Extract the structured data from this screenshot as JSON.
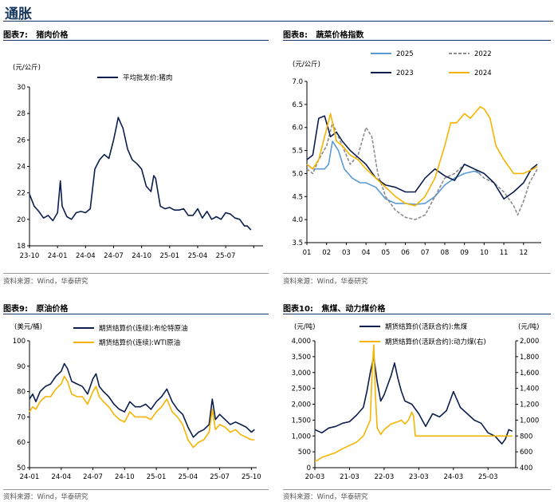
{
  "page_title": "通胀",
  "colors": {
    "navy": "#0b1e4d",
    "gold": "#f5b400",
    "lightblue": "#5b9bd5",
    "gray": "#8c8c8c",
    "title": "#17375e"
  },
  "charts": [
    {
      "figure_label": "图表7:",
      "figure_title": "猪肉价格",
      "source": "资料来源：Wind，华泰研究",
      "chart_data": {
        "type": "line",
        "title": "猪肉价格",
        "ylabel": "(元/公斤)",
        "ylim": [
          18,
          30
        ],
        "yticks": [
          18,
          20,
          22,
          24,
          26,
          28,
          30
        ],
        "xlim": [
          0,
          25
        ],
        "xtick_positions": [
          0,
          3,
          6,
          9,
          12,
          15,
          18,
          21,
          24
        ],
        "xticks": [
          "23-10",
          "24-01",
          "24-04",
          "24-07",
          "24-10",
          "25-01",
          "25-04",
          "25-07",
          ""
        ],
        "legend_position": "top-center",
        "series": [
          {
            "name": "平均批发价:猪肉",
            "color": "#0b1e4d",
            "x": [
              0,
              0.5,
              1,
              1.5,
              2,
              2.5,
              3,
              3.3,
              3.5,
              4,
              4.5,
              5,
              5.5,
              6,
              6.5,
              7,
              7.5,
              8,
              8.5,
              9,
              9.3,
              9.5,
              9.8,
              10,
              10.5,
              11,
              11.5,
              12,
              12.5,
              13,
              13.3,
              13.5,
              14,
              14.5,
              15,
              15.5,
              16,
              16.5,
              17,
              17.5,
              18,
              18.5,
              19,
              19.5,
              20,
              20.5,
              21,
              21.5,
              22,
              22.5,
              23,
              23.3,
              23.7
            ],
            "y": [
              21.9,
              21.0,
              20.6,
              20.1,
              20.3,
              19.9,
              20.5,
              22.9,
              21.0,
              20.2,
              20.0,
              20.5,
              20.6,
              20.5,
              20.8,
              23.8,
              24.5,
              24.9,
              24.6,
              26.0,
              27.0,
              27.7,
              27.2,
              26.9,
              25.3,
              24.5,
              24.2,
              23.8,
              22.5,
              22.1,
              23.3,
              23.1,
              21.0,
              20.8,
              20.9,
              20.7,
              20.7,
              20.8,
              20.3,
              20.3,
              20.8,
              20.1,
              20.6,
              20.0,
              20.2,
              20.0,
              20.5,
              20.4,
              20.1,
              20.0,
              19.5,
              19.5,
              19.2
            ]
          }
        ]
      }
    },
    {
      "figure_label": "图表8:",
      "figure_title": "蔬菜价格指数",
      "source": "资料来源：Wind，华泰研究",
      "chart_data": {
        "type": "line",
        "title": "蔬菜价格指数",
        "ylabel": "(元/公斤)",
        "ylim": [
          3.5,
          7.0
        ],
        "yticks": [
          3.5,
          4.0,
          4.5,
          5.0,
          5.5,
          6.0,
          6.5,
          7.0
        ],
        "xlim": [
          1,
          12.9
        ],
        "xtick_positions": [
          1,
          2,
          3,
          4,
          5,
          6,
          7,
          8,
          9,
          10,
          11,
          12
        ],
        "xticks": [
          "01",
          "02",
          "03",
          "04",
          "05",
          "06",
          "07",
          "08",
          "09",
          "10",
          "11",
          "12"
        ],
        "legend_position": "top",
        "series": [
          {
            "name": "2025",
            "color": "#5b9bd5",
            "style": "solid",
            "x": [
              1,
              1.3,
              1.6,
              1.9,
              2.1,
              2.3,
              2.6,
              2.9,
              3.3,
              3.7,
              4,
              4.5,
              5,
              5.5,
              6,
              6.5,
              7,
              7.5,
              8,
              8.5,
              9,
              9.5,
              9.8
            ],
            "y": [
              5.2,
              5.1,
              5.1,
              5.1,
              5.2,
              5.7,
              5.5,
              5.1,
              4.9,
              4.8,
              4.8,
              4.7,
              4.45,
              4.35,
              4.35,
              4.33,
              4.35,
              4.5,
              4.75,
              4.9,
              5.0,
              5.05,
              5.0
            ]
          },
          {
            "name": "2022",
            "color": "#8c8c8c",
            "style": "dashed",
            "x": [
              1,
              1.3,
              1.6,
              2,
              2.3,
              2.6,
              2.9,
              3.2,
              3.6,
              4,
              4.3,
              4.6,
              5,
              5.5,
              6,
              6.5,
              7,
              7.5,
              8,
              8.5,
              9,
              9.5,
              10,
              10.5,
              11,
              11.5,
              11.7,
              12,
              12.3,
              12.7
            ],
            "y": [
              5.1,
              5.0,
              5.3,
              5.6,
              6.1,
              5.8,
              5.5,
              5.2,
              5.4,
              6.0,
              5.8,
              5.0,
              4.5,
              4.2,
              4.05,
              4.0,
              4.1,
              4.5,
              4.9,
              5.0,
              5.2,
              5.1,
              4.9,
              4.8,
              4.6,
              4.3,
              4.1,
              4.4,
              4.8,
              5.1
            ]
          },
          {
            "name": "2023",
            "color": "#0b1e4d",
            "style": "solid",
            "x": [
              1,
              1.3,
              1.6,
              1.9,
              2.2,
              2.5,
              2.8,
              3.2,
              3.6,
              4,
              4.5,
              5,
              5.5,
              6,
              6.5,
              7,
              7.5,
              8,
              8.5,
              9,
              9.5,
              10,
              10.5,
              11,
              11.5,
              12,
              12.4,
              12.7
            ],
            "y": [
              5.3,
              5.4,
              6.2,
              6.25,
              5.8,
              5.9,
              5.7,
              5.5,
              5.35,
              5.2,
              4.9,
              4.75,
              4.7,
              4.6,
              4.6,
              4.9,
              5.1,
              4.95,
              4.85,
              5.2,
              5.1,
              5.0,
              4.8,
              4.45,
              4.6,
              4.8,
              5.1,
              5.2
            ]
          },
          {
            "name": "2024",
            "color": "#f5b400",
            "style": "solid",
            "x": [
              1,
              1.3,
              1.6,
              1.9,
              2.2,
              2.5,
              2.8,
              3.2,
              3.6,
              4,
              4.5,
              5,
              5.5,
              6,
              6.5,
              7,
              7.5,
              8,
              8.3,
              8.6,
              9,
              9.3,
              9.6,
              9.8,
              10,
              10.3,
              10.6,
              11,
              11.5,
              12,
              12.5,
              12.7
            ],
            "y": [
              5.2,
              5.1,
              5.3,
              5.8,
              6.3,
              5.7,
              5.6,
              5.4,
              5.3,
              5.1,
              4.9,
              4.7,
              4.5,
              4.35,
              4.3,
              4.5,
              4.9,
              5.6,
              6.1,
              6.1,
              6.3,
              6.2,
              6.35,
              6.45,
              6.4,
              6.2,
              5.6,
              5.3,
              5.0,
              5.0,
              5.1,
              5.15
            ]
          }
        ]
      }
    },
    {
      "figure_label": "图表9:",
      "figure_title": "原油价格",
      "source": "资料来源：Wind，华泰研究",
      "chart_data": {
        "type": "line",
        "title": "原油价格",
        "ylabel": "(美元/桶)",
        "ylim": [
          50,
          100
        ],
        "yticks": [
          50,
          60,
          70,
          80,
          90,
          100
        ],
        "xlim": [
          0,
          21.5
        ],
        "xtick_positions": [
          0,
          3,
          6,
          9,
          12,
          15,
          18,
          21
        ],
        "xticks": [
          "24-01",
          "24-04",
          "24-07",
          "24-10",
          "25-01",
          "25-04",
          "25-07",
          "25-10"
        ],
        "legend_position": "top-center",
        "series": [
          {
            "name": "期货结算价(连续):布伦特原油",
            "color": "#0b1e4d",
            "x": [
              0,
              0.3,
              0.6,
              1,
              1.5,
              2,
              2.5,
              3,
              3.3,
              3.6,
              4,
              4.5,
              5,
              5.5,
              6,
              6.3,
              6.6,
              7,
              7.5,
              8,
              8.5,
              9,
              9.5,
              10,
              10.5,
              11,
              11.5,
              12,
              12.5,
              13,
              13.5,
              14,
              14.5,
              15,
              15.5,
              16,
              16.5,
              17,
              17.3,
              17.6,
              18,
              18.5,
              19,
              19.5,
              20,
              20.5,
              21,
              21.3
            ],
            "y": [
              77,
              79,
              76,
              80,
              82,
              83,
              86,
              88,
              91,
              89,
              84,
              83,
              82,
              79,
              85,
              87,
              82,
              80,
              78,
              75,
              73,
              72,
              76,
              74,
              74,
              75,
              73,
              76,
              78,
              81,
              76,
              73,
              71,
              66,
              62,
              64,
              65,
              67,
              77,
              69,
              71,
              69,
              67,
              68,
              67,
              66,
              64,
              65
            ]
          },
          {
            "name": "期货结算价(连续):WTI原油",
            "color": "#f5b400",
            "x": [
              0,
              0.3,
              0.6,
              1,
              1.5,
              2,
              2.5,
              3,
              3.3,
              3.6,
              4,
              4.5,
              5,
              5.5,
              6,
              6.3,
              6.6,
              7,
              7.5,
              8,
              8.5,
              9,
              9.5,
              10,
              10.5,
              11,
              11.5,
              12,
              12.5,
              13,
              13.5,
              14,
              14.5,
              15,
              15.5,
              16,
              16.5,
              17,
              17.3,
              17.6,
              18,
              18.5,
              19,
              19.5,
              20,
              20.5,
              21,
              21.3
            ],
            "y": [
              72,
              74,
              73,
              76,
              78,
              78,
              81,
              83,
              86,
              84,
              79,
              78,
              78,
              75,
              80,
              82,
              78,
              76,
              74,
              71,
              69,
              68,
              72,
              70,
              70,
              70,
              69,
              72,
              74,
              77,
              72,
              70,
              67,
              61,
              58,
              60,
              61,
              64,
              73,
              65,
              67,
              66,
              64,
              65,
              63,
              62,
              61,
              61
            ]
          }
        ]
      }
    },
    {
      "figure_label": "图表10:",
      "figure_title": "焦煤、动力煤价格",
      "source": "资料来源：Wind，华泰研究",
      "chart_data": {
        "type": "line",
        "title": "焦煤、动力煤价格",
        "ylabel": "(元/吨)",
        "y2label": "(元/吨)",
        "ylim": [
          0,
          4000
        ],
        "yticks": [
          0,
          500,
          1000,
          1500,
          2000,
          2500,
          3000,
          3500,
          4000
        ],
        "y2lim": [
          400,
          2000
        ],
        "y2ticks": [
          400,
          600,
          800,
          1000,
          1200,
          1400,
          1600,
          1800,
          2000
        ],
        "xlim": [
          0,
          5.8
        ],
        "xtick_positions": [
          0,
          1,
          2,
          3,
          4,
          5
        ],
        "xticks": [
          "20-03",
          "21-03",
          "22-03",
          "23-03",
          "24-03",
          "25-03"
        ],
        "legend_position": "top-center",
        "series": [
          {
            "name": "期货结算价(活跃合约):焦煤",
            "color": "#0b1e4d",
            "axis": "left",
            "x": [
              0,
              0.2,
              0.4,
              0.6,
              0.8,
              1.0,
              1.2,
              1.4,
              1.5,
              1.6,
              1.7,
              1.8,
              1.9,
              2.0,
              2.2,
              2.3,
              2.4,
              2.5,
              2.6,
              2.8,
              3.0,
              3.2,
              3.4,
              3.6,
              3.8,
              4.0,
              4.2,
              4.4,
              4.6,
              4.8,
              5.0,
              5.2,
              5.4,
              5.5,
              5.6,
              5.7
            ],
            "y": [
              1200,
              1100,
              1250,
              1300,
              1400,
              1450,
              1650,
              1900,
              2400,
              3000,
              3500,
              2700,
              2100,
              2300,
              2900,
              3300,
              2800,
              2400,
              2100,
              2000,
              1700,
              1300,
              1700,
              1600,
              1800,
              2400,
              1900,
              1700,
              1500,
              1400,
              1100,
              1000,
              750,
              900,
              1200,
              1150
            ]
          },
          {
            "name": "期货结算价(活跃合约):动力煤(右)",
            "color": "#f5b400",
            "axis": "right",
            "x": [
              0,
              0.1,
              0.2,
              0.4,
              0.6,
              0.8,
              1.0,
              1.2,
              1.4,
              1.5,
              1.6,
              1.65,
              1.7,
              1.75,
              1.8,
              1.9,
              2.0,
              2.2,
              2.4,
              2.5,
              2.6,
              2.7,
              2.8,
              2.85,
              2.9,
              3.0,
              3.5,
              4.0,
              4.5,
              5.0,
              5.5,
              5.7
            ],
            "y": [
              480,
              500,
              530,
              560,
              590,
              640,
              680,
              720,
              800,
              900,
              1000,
              1600,
              1950,
              1300,
              900,
              820,
              880,
              950,
              980,
              1000,
              950,
              1000,
              1100,
              1050,
              800,
              800,
              800,
              800,
              800,
              800,
              800,
              800
            ]
          }
        ]
      }
    }
  ]
}
